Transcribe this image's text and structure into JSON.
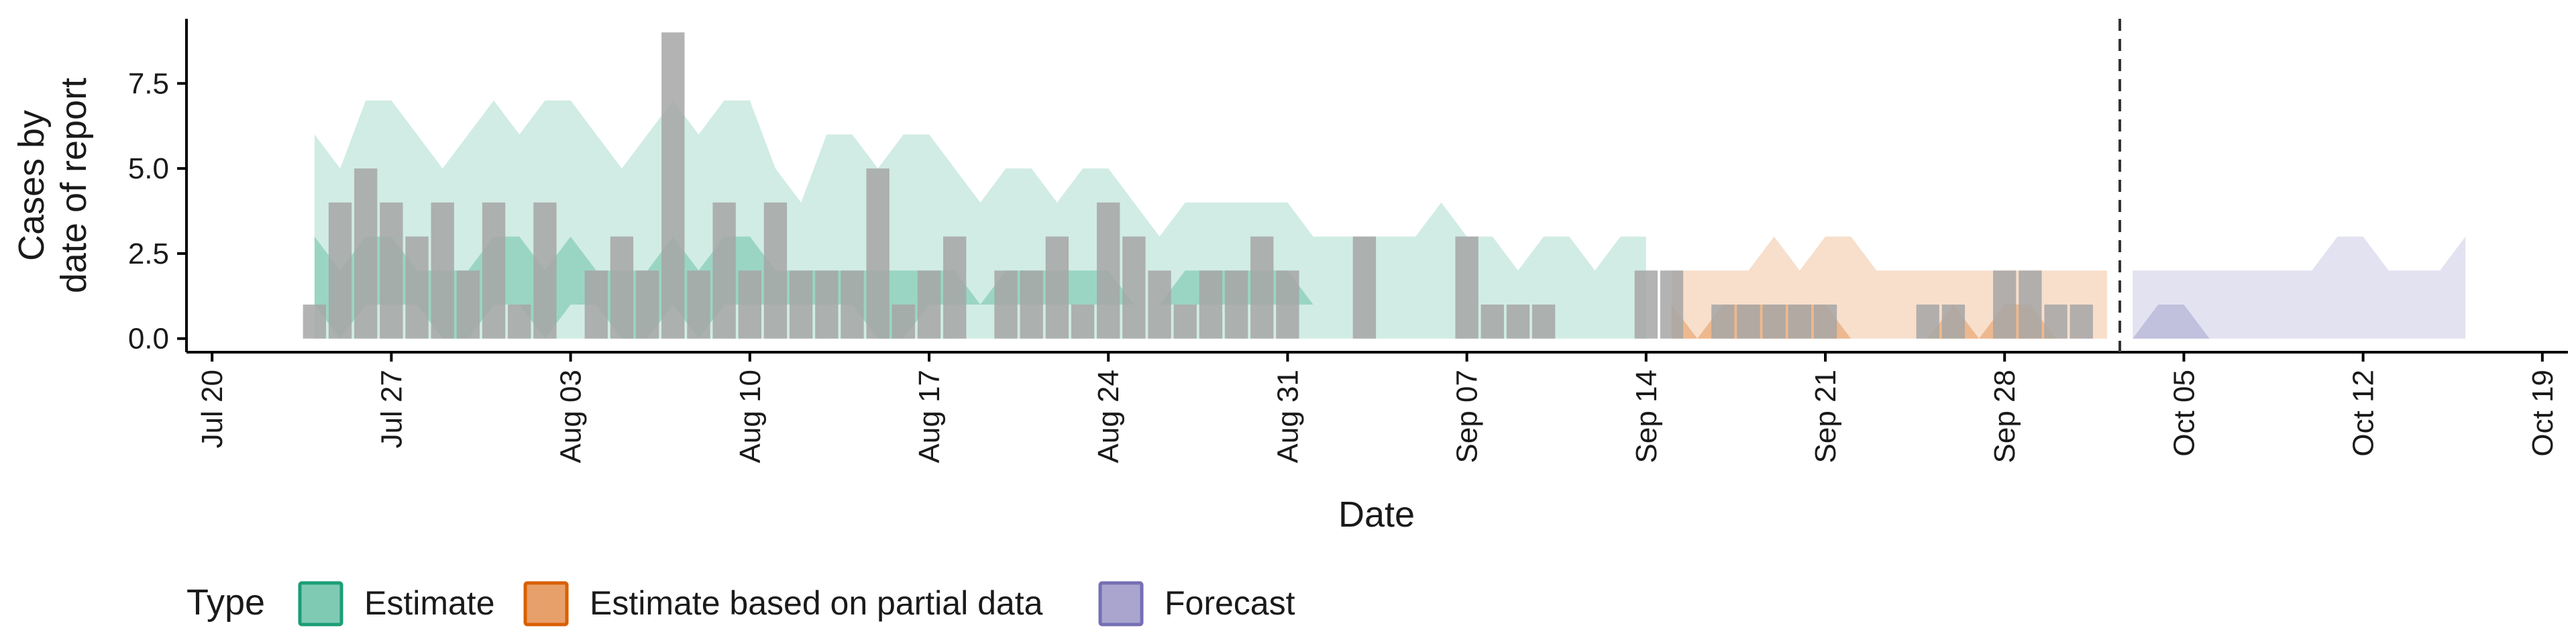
{
  "chart_data": {
    "type": "bar",
    "xlabel": "Date",
    "ylabel_lines": [
      "Cases by",
      "date of report"
    ],
    "ylim": [
      -0.4,
      9.4
    ],
    "y_ticks": [
      0.0,
      2.5,
      5.0,
      7.5
    ],
    "y_tick_labels": [
      "0.0",
      "2.5",
      "5.0",
      "7.5"
    ],
    "x_range": [
      "2020-07-19",
      "2020-10-20"
    ],
    "x_ticks": [
      "2020-07-20",
      "2020-07-27",
      "2020-08-03",
      "2020-08-10",
      "2020-08-17",
      "2020-08-24",
      "2020-08-31",
      "2020-09-07",
      "2020-09-14",
      "2020-09-21",
      "2020-09-28",
      "2020-10-05",
      "2020-10-12",
      "2020-10-19"
    ],
    "x_tick_labels": [
      "Jul 20",
      "Jul 27",
      "Aug 03",
      "Aug 10",
      "Aug 17",
      "Aug 24",
      "Aug 31",
      "Sep 07",
      "Sep 14",
      "Sep 21",
      "Sep 28",
      "Oct 05",
      "Oct 12",
      "Oct 19"
    ],
    "forecast_date": "2020-10-02",
    "legend": {
      "title": "Type",
      "items": [
        {
          "label": "Estimate",
          "fill": "#7fcab3",
          "stroke": "#1b9e77"
        },
        {
          "label": "Estimate based on partial data",
          "fill": "#e8a06b",
          "stroke": "#d95f02"
        },
        {
          "label": "Forecast",
          "fill": "#a9a5cf",
          "stroke": "#7570b3"
        }
      ]
    },
    "colors": {
      "Estimate": "#1b9e77",
      "Estimate based on partial data": "#d95f02",
      "Forecast": "#7570b3",
      "bars": "#a6a6a6",
      "forecast_line": "#333333"
    },
    "reported_cases": {
      "dates": [
        "2020-07-24",
        "2020-07-25",
        "2020-07-26",
        "2020-07-27",
        "2020-07-28",
        "2020-07-29",
        "2020-07-30",
        "2020-07-31",
        "2020-08-01",
        "2020-08-02",
        "2020-08-03",
        "2020-08-04",
        "2020-08-05",
        "2020-08-06",
        "2020-08-07",
        "2020-08-08",
        "2020-08-09",
        "2020-08-10",
        "2020-08-11",
        "2020-08-12",
        "2020-08-13",
        "2020-08-14",
        "2020-08-15",
        "2020-08-16",
        "2020-08-17",
        "2020-08-18",
        "2020-08-19",
        "2020-08-20",
        "2020-08-21",
        "2020-08-22",
        "2020-08-23",
        "2020-08-24",
        "2020-08-25",
        "2020-08-26",
        "2020-08-27",
        "2020-08-28",
        "2020-08-29",
        "2020-08-30",
        "2020-08-31",
        "2020-09-01",
        "2020-09-02",
        "2020-09-03",
        "2020-09-04",
        "2020-09-05",
        "2020-09-06",
        "2020-09-07",
        "2020-09-08",
        "2020-09-09",
        "2020-09-10",
        "2020-09-11",
        "2020-09-12",
        "2020-09-13",
        "2020-09-14",
        "2020-09-15",
        "2020-09-16",
        "2020-09-17",
        "2020-09-18",
        "2020-09-19",
        "2020-09-20",
        "2020-09-21",
        "2020-09-22",
        "2020-09-23",
        "2020-09-24",
        "2020-09-25",
        "2020-09-26",
        "2020-09-27",
        "2020-09-28",
        "2020-09-29",
        "2020-09-30",
        "2020-10-01"
      ],
      "values": [
        1,
        4,
        5,
        4,
        3,
        4,
        2,
        4,
        1,
        4,
        0,
        2,
        3,
        2,
        9,
        2,
        4,
        2,
        4,
        2,
        2,
        2,
        5,
        1,
        2,
        3,
        0,
        2,
        2,
        3,
        1,
        4,
        3,
        2,
        1,
        2,
        2,
        3,
        2,
        0,
        0,
        3,
        0,
        0,
        0,
        3,
        1,
        1,
        1,
        0,
        0,
        0,
        2,
        2,
        0,
        1,
        1,
        1,
        1,
        1,
        0,
        0,
        0,
        1,
        1,
        0,
        2,
        2,
        1,
        1
      ]
    },
    "series": [
      {
        "name": "Estimate",
        "dates": [
          "2020-07-24",
          "2020-07-25",
          "2020-07-26",
          "2020-07-27",
          "2020-07-28",
          "2020-07-29",
          "2020-07-30",
          "2020-07-31",
          "2020-08-01",
          "2020-08-02",
          "2020-08-03",
          "2020-08-04",
          "2020-08-05",
          "2020-08-06",
          "2020-08-07",
          "2020-08-08",
          "2020-08-09",
          "2020-08-10",
          "2020-08-11",
          "2020-08-12",
          "2020-08-13",
          "2020-08-14",
          "2020-08-15",
          "2020-08-16",
          "2020-08-17",
          "2020-08-18",
          "2020-08-19",
          "2020-08-20",
          "2020-08-21",
          "2020-08-22",
          "2020-08-23",
          "2020-08-24",
          "2020-08-25",
          "2020-08-26",
          "2020-08-27",
          "2020-08-28",
          "2020-08-29",
          "2020-08-30",
          "2020-08-31",
          "2020-09-01",
          "2020-09-02",
          "2020-09-03",
          "2020-09-04",
          "2020-09-05",
          "2020-09-06",
          "2020-09-07",
          "2020-09-08",
          "2020-09-09",
          "2020-09-10",
          "2020-09-11",
          "2020-09-12",
          "2020-09-13",
          "2020-09-14"
        ],
        "upper_90": [
          6,
          5,
          7,
          7,
          6,
          5,
          6,
          7,
          6,
          7,
          7,
          6,
          5,
          6,
          7,
          6,
          7,
          7,
          5,
          4,
          6,
          6,
          5,
          6,
          6,
          5,
          4,
          5,
          5,
          4,
          5,
          5,
          4,
          3,
          4,
          4,
          4,
          4,
          4,
          3,
          3,
          3,
          3,
          3,
          4,
          3,
          3,
          2,
          3,
          3,
          2,
          3,
          3
        ],
        "lower_90": [
          0,
          0,
          0,
          0,
          0,
          0,
          0,
          0,
          0,
          0,
          0,
          0,
          0,
          0,
          0,
          0,
          0,
          0,
          0,
          0,
          0,
          0,
          0,
          0,
          0,
          0,
          0,
          0,
          0,
          0,
          0,
          0,
          0,
          0,
          0,
          0,
          0,
          0,
          0,
          0,
          0,
          0,
          0,
          0,
          0,
          0,
          0,
          0,
          0,
          0,
          0,
          0,
          0
        ],
        "upper_50": [
          3,
          2,
          3,
          3,
          2,
          2,
          2,
          3,
          3,
          2,
          3,
          2,
          2,
          2,
          3,
          2,
          3,
          3,
          2,
          2,
          2,
          2,
          2,
          2,
          2,
          2,
          1,
          2,
          2,
          2,
          2,
          2,
          1,
          1,
          2,
          2,
          2,
          2,
          2,
          1,
          1,
          1,
          1,
          1,
          1,
          1,
          1,
          1,
          1,
          1,
          1,
          1,
          1
        ],
        "lower_50": [
          1,
          0,
          1,
          1,
          1,
          0,
          0,
          1,
          1,
          0,
          1,
          1,
          0,
          0,
          1,
          0,
          1,
          1,
          1,
          1,
          1,
          1,
          0,
          0,
          1,
          1,
          1,
          1,
          1,
          1,
          1,
          1,
          1,
          1,
          1,
          1,
          1,
          1,
          1,
          1,
          1,
          1,
          1,
          1,
          1,
          1,
          1,
          1,
          1,
          1,
          1,
          1,
          1
        ]
      },
      {
        "name": "Estimate based on partial data",
        "dates": [
          "2020-09-15",
          "2020-09-16",
          "2020-09-17",
          "2020-09-18",
          "2020-09-19",
          "2020-09-20",
          "2020-09-21",
          "2020-09-22",
          "2020-09-23",
          "2020-09-24",
          "2020-09-25",
          "2020-09-26",
          "2020-09-27",
          "2020-09-28",
          "2020-09-29",
          "2020-09-30",
          "2020-10-01",
          "2020-10-02"
        ],
        "upper_90": [
          2,
          2,
          2,
          2,
          3,
          2,
          3,
          3,
          2,
          2,
          2,
          2,
          2,
          2,
          2,
          2,
          2,
          2
        ],
        "lower_90": [
          0,
          0,
          0,
          0,
          0,
          0,
          0,
          0,
          0,
          0,
          0,
          0,
          0,
          0,
          0,
          0,
          0,
          0
        ],
        "upper_50": [
          1,
          0,
          1,
          1,
          1,
          1,
          1,
          0,
          0,
          0,
          0,
          1,
          0,
          1,
          1,
          0,
          0,
          0
        ],
        "lower_50": [
          0,
          0,
          0,
          0,
          0,
          0,
          0,
          0,
          0,
          0,
          0,
          0,
          0,
          0,
          0,
          0,
          0,
          0
        ]
      },
      {
        "name": "Forecast",
        "dates": [
          "2020-10-03",
          "2020-10-04",
          "2020-10-05",
          "2020-10-06",
          "2020-10-07",
          "2020-10-08",
          "2020-10-09",
          "2020-10-10",
          "2020-10-11",
          "2020-10-12",
          "2020-10-13",
          "2020-10-14",
          "2020-10-15",
          "2020-10-16"
        ],
        "upper_90": [
          2,
          2,
          2,
          2,
          2,
          2,
          2,
          2,
          3,
          3,
          2,
          2,
          2,
          3
        ],
        "lower_90": [
          0,
          0,
          0,
          0,
          0,
          0,
          0,
          0,
          0,
          0,
          0,
          0,
          0,
          0
        ],
        "upper_50": [
          0,
          1,
          1,
          0,
          0,
          0,
          0,
          0,
          0,
          0,
          0,
          0,
          0,
          0
        ],
        "lower_50": [
          0,
          0,
          0,
          0,
          0,
          0,
          0,
          0,
          0,
          0,
          0,
          0,
          0,
          0
        ]
      }
    ]
  }
}
